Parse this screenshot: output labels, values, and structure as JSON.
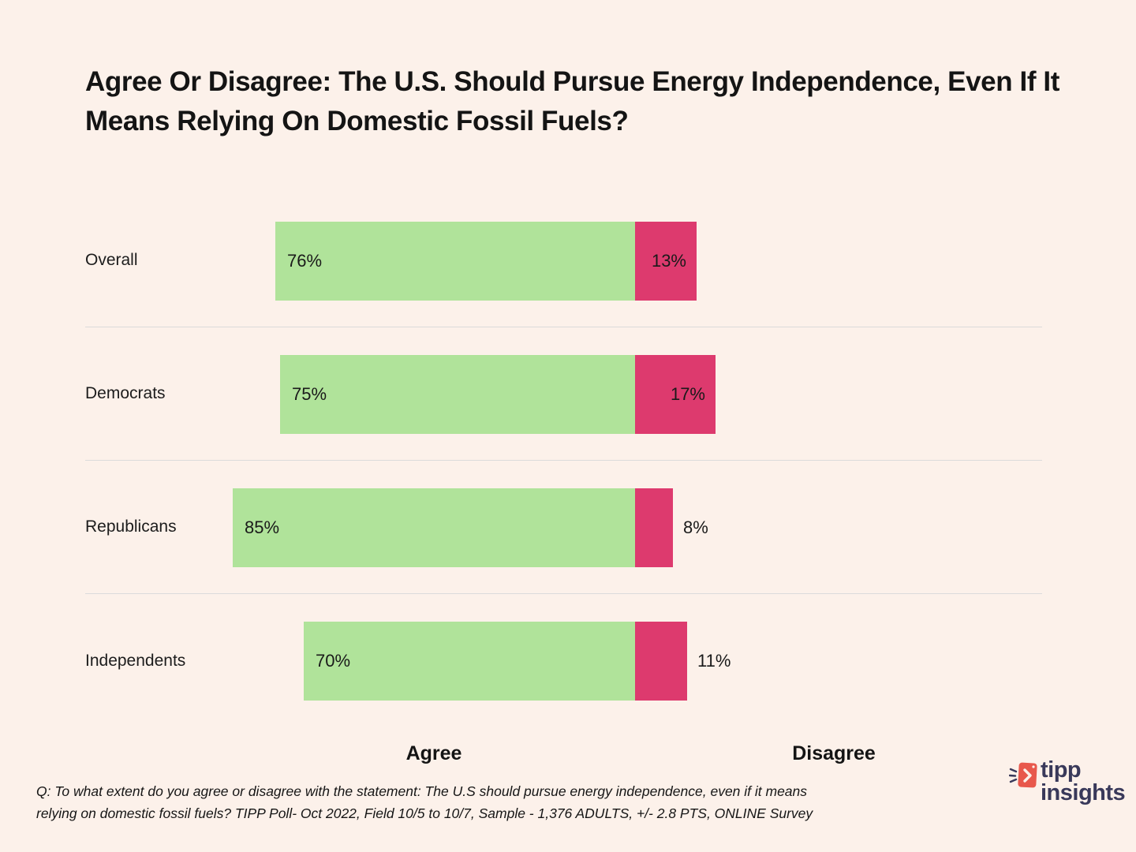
{
  "title": "Agree Or Disagree:  The U.S. Should Pursue Energy Independence, Even If It Means Relying On Domestic Fossil Fuels?",
  "chart_data": {
    "type": "bar",
    "orientation": "horizontal",
    "unit": "percent",
    "categories": [
      "Overall",
      "Democrats",
      "Republicans",
      "Independents"
    ],
    "series": [
      {
        "name": "Agree",
        "values": [
          76,
          75,
          85,
          70
        ]
      },
      {
        "name": "Disagree",
        "values": [
          13,
          17,
          8,
          11
        ]
      }
    ],
    "rows": [
      {
        "category": "Overall",
        "agree": 76,
        "agree_label": "76%",
        "disagree": 13,
        "disagree_label": "13%"
      },
      {
        "category": "Democrats",
        "agree": 75,
        "agree_label": "75%",
        "disagree": 17,
        "disagree_label": "17%"
      },
      {
        "category": "Republicans",
        "agree": 85,
        "agree_label": "85%",
        "disagree": 8,
        "disagree_label": "8%"
      },
      {
        "category": "Independents",
        "agree": 70,
        "agree_label": "70%",
        "disagree": 11,
        "disagree_label": "11%"
      }
    ],
    "legend_position": "bottom",
    "grid": "row-dividers-only"
  },
  "legend": {
    "agree": "Agree",
    "disagree": "Disagree"
  },
  "footnote": {
    "line1": "Q: To what extent do you agree or disagree with the statement: The U.S should pursue energy independence, even if it means",
    "line2": "relying on domestic fossil fuels? TIPP Poll- Oct 2022, Field 10/5 to 10/7, Sample - 1,376 ADULTS, +/- 2.8 PTS, ONLINE Survey"
  },
  "logo": {
    "brand_line1": "tipp",
    "brand_line2": "insights"
  },
  "colors": {
    "background": "#fcf1ea",
    "agree": "#b0e39a",
    "disagree": "#dd3a6e",
    "divider": "#dbdbdb",
    "text": "#1a1a1a",
    "logo_navy": "#39395a",
    "logo_red": "#e8584c"
  }
}
